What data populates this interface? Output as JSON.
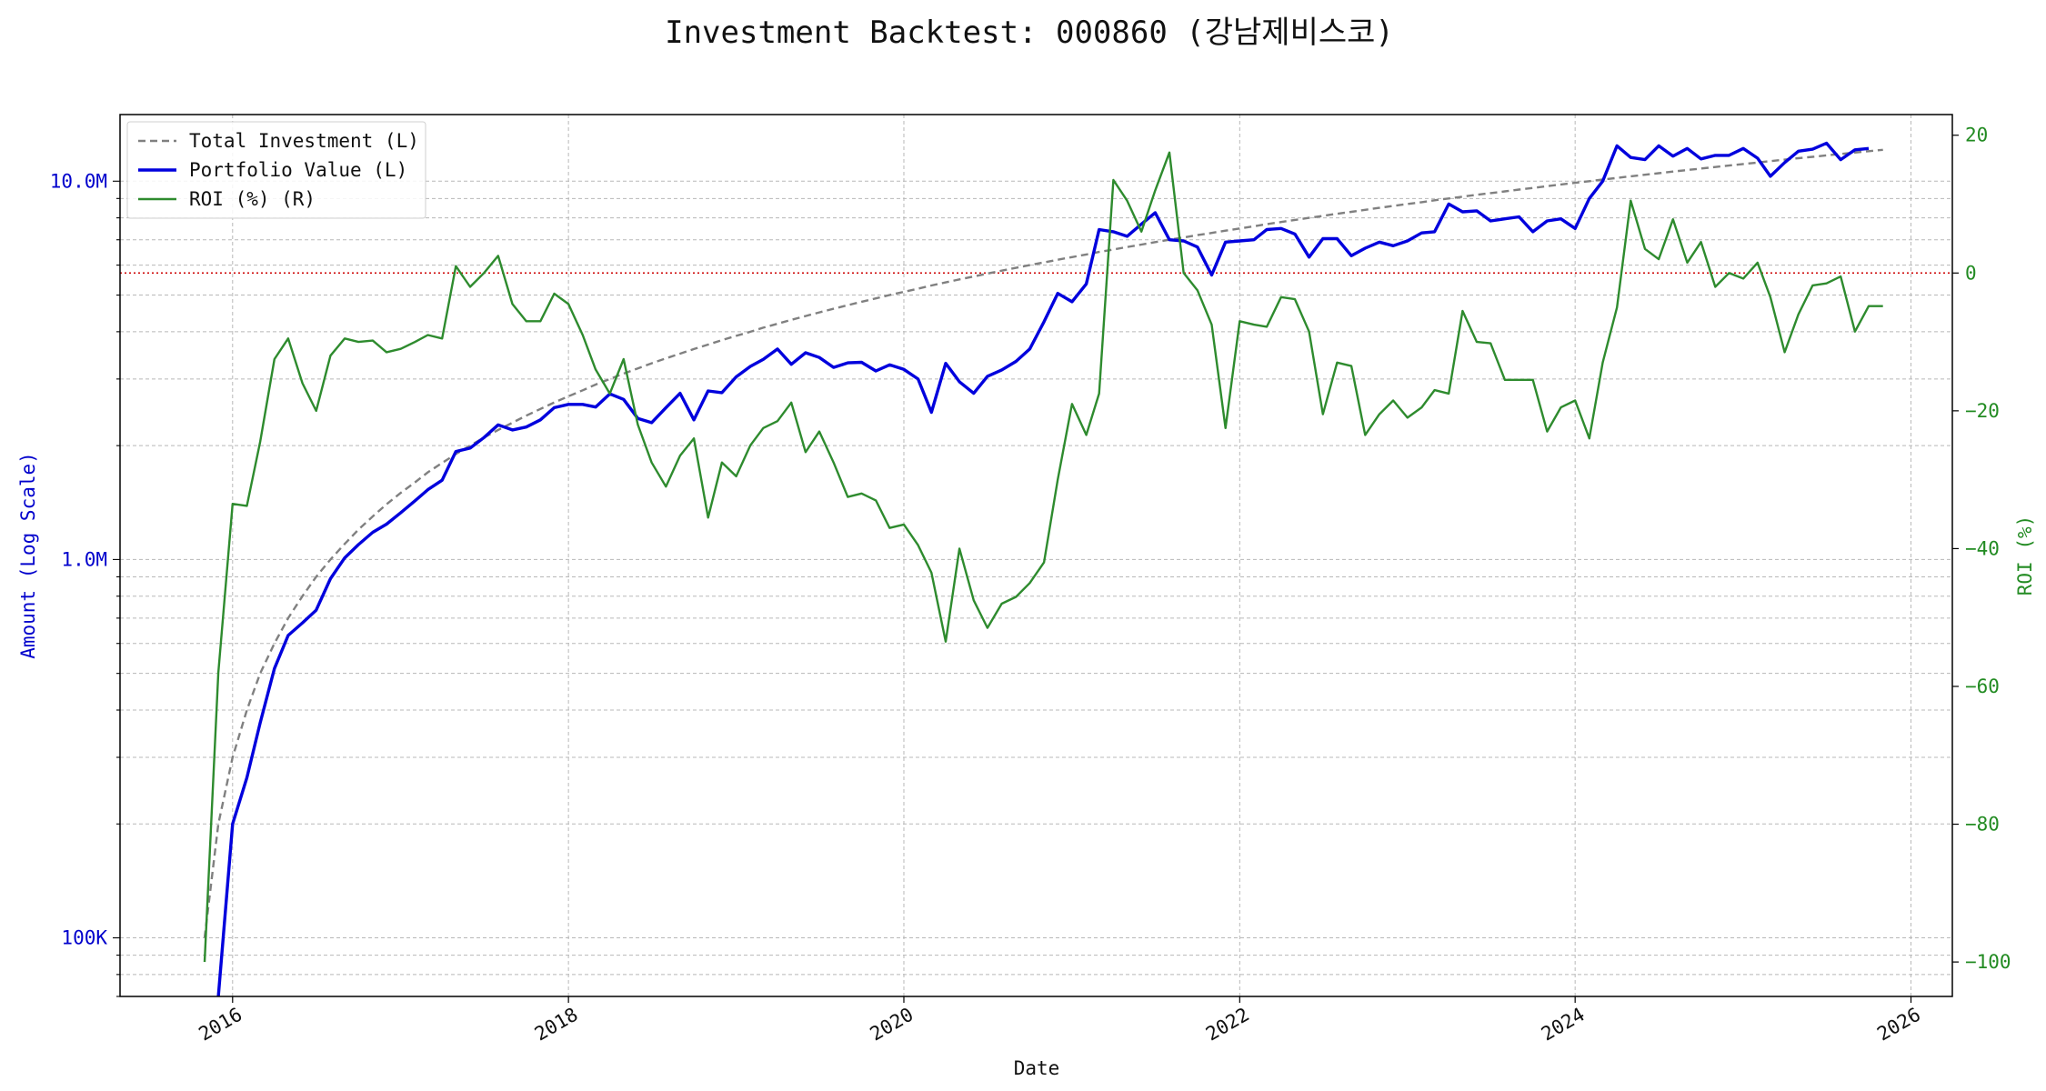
{
  "chart_data": {
    "type": "line",
    "title": "Investment Backtest: 000860 (강남제비스코)",
    "xlabel": "Date",
    "ylabel_left": "Amount (Log Scale)",
    "ylabel_right": "ROI (%)",
    "left_axis": {
      "scale": "log",
      "ylim": [
        70000,
        15000000
      ],
      "ticks": [
        {
          "value": 100000,
          "label": "100K"
        },
        {
          "value": 1000000,
          "label": "1.0M"
        },
        {
          "value": 10000000,
          "label": "10.0M"
        }
      ]
    },
    "right_axis": {
      "scale": "linear",
      "ylim": [
        -105,
        23
      ],
      "ticks": [
        {
          "value": 20,
          "label": "20"
        },
        {
          "value": 0,
          "label": "0"
        },
        {
          "value": -20,
          "label": "−20"
        },
        {
          "value": -40,
          "label": "−40"
        },
        {
          "value": -60,
          "label": "−60"
        },
        {
          "value": -80,
          "label": "−80"
        },
        {
          "value": -100,
          "label": "−100"
        }
      ],
      "reference_line": {
        "value": 0,
        "color": "#cc0000",
        "style": "dotted"
      }
    },
    "x_axis": {
      "xlim": [
        "2015-05-01",
        "2026-04-01"
      ],
      "ticks": [
        {
          "value": "2016-01-01",
          "label": "2016"
        },
        {
          "value": "2018-01-01",
          "label": "2018"
        },
        {
          "value": "2020-01-01",
          "label": "2020"
        },
        {
          "value": "2022-01-01",
          "label": "2022"
        },
        {
          "value": "2024-01-01",
          "label": "2024"
        },
        {
          "value": "2026-01-01",
          "label": "2026"
        }
      ]
    },
    "grid": true,
    "legend_position": "top-left",
    "start_date": "2015-11-01",
    "series": [
      {
        "name": "Total Investment (L)",
        "axis": "left",
        "color": "#808080",
        "style": "dashed",
        "values": [
          100000,
          200000,
          300000,
          400000,
          500000,
          600000,
          700000,
          800000,
          900000,
          1000000,
          1100000,
          1200000,
          1300000,
          1400000,
          1500000,
          1600000,
          1700000,
          1800000,
          1900000,
          2000000,
          2100000,
          2200000,
          2300000,
          2400000,
          2500000,
          2600000,
          2700000,
          2800000,
          2900000,
          3000000,
          3100000,
          3200000,
          3300000,
          3400000,
          3500000,
          3600000,
          3700000,
          3800000,
          3900000,
          4000000,
          4100000,
          4200000,
          4300000,
          4400000,
          4500000,
          4600000,
          4700000,
          4800000,
          4900000,
          5000000,
          5100000,
          5200000,
          5300000,
          5400000,
          5500000,
          5600000,
          5700000,
          5800000,
          5900000,
          6000000,
          6100000,
          6200000,
          6300000,
          6400000,
          6500000,
          6600000,
          6700000,
          6800000,
          6900000,
          7000000,
          7100000,
          7200000,
          7300000,
          7400000,
          7500000,
          7600000,
          7700000,
          7800000,
          7900000,
          8000000,
          8100000,
          8200000,
          8300000,
          8400000,
          8500000,
          8600000,
          8700000,
          8800000,
          8900000,
          9000000,
          9100000,
          9200000,
          9300000,
          9400000,
          9500000,
          9600000,
          9700000,
          9800000,
          9900000,
          10000000,
          10100000,
          10200000,
          10300000,
          10400000,
          10500000,
          10600000,
          10700000,
          10800000,
          10900000,
          11000000,
          11100000,
          11200000,
          11300000,
          11400000,
          11500000,
          11600000,
          11700000,
          11800000,
          11900000,
          12000000,
          12100000
        ]
      },
      {
        "name": "Portfolio Value (L)",
        "axis": "left",
        "color": "#0000dd",
        "style": "solid",
        "start_index": 1,
        "values": [
          70000,
          200000,
          265000,
          370000,
          515000,
          630000,
          680000,
          735000,
          890000,
          1010000,
          1095000,
          1180000,
          1240000,
          1330000,
          1430000,
          1530000,
          1620000,
          1930000,
          1970000,
          2100000,
          2270000,
          2200000,
          2240000,
          2340000,
          2520000,
          2570000,
          2570000,
          2530000,
          2740000,
          2650000,
          2360000,
          2300000,
          2520000,
          2750000,
          2340000,
          2790000,
          2760000,
          3040000,
          3240000,
          3380000,
          3600000,
          3280000,
          3520000,
          3420000,
          3220000,
          3310000,
          3320000,
          3150000,
          3270000,
          3180000,
          3000000,
          2450000,
          3300000,
          2950000,
          2750000,
          3050000,
          3170000,
          3340000,
          3600000,
          4250000,
          5050000,
          4800000,
          5350000,
          7450000,
          7350000,
          7150000,
          7700000,
          8250000,
          7000000,
          6950000,
          6700000,
          5650000,
          6900000,
          6950000,
          7000000,
          7450000,
          7500000,
          7250000,
          6300000,
          7050000,
          7050000,
          6350000,
          6650000,
          6900000,
          6750000,
          6950000,
          7300000,
          7350000,
          8700000,
          8300000,
          8350000,
          7850000,
          7950000,
          8050000,
          7350000,
          7850000,
          7950000,
          7500000,
          9000000,
          10000000,
          12400000,
          11550000,
          11400000,
          12400000,
          11650000,
          12200000,
          11450000,
          11700000,
          11700000,
          12200000,
          11500000,
          10300000,
          11200000,
          12000000,
          12150000,
          12600000,
          11400000,
          12100000,
          12200000
        ]
      },
      {
        "name": "ROI (%) (R)",
        "axis": "right",
        "color": "#2e8b2e",
        "style": "solid",
        "values": [
          -100,
          -58,
          -33.5,
          -33.8,
          -24.5,
          -12.5,
          -9.5,
          -16,
          -20,
          -12,
          -9.5,
          -10,
          -9.8,
          -11.5,
          -11,
          -10,
          -9,
          -9.5,
          1,
          -2,
          0,
          2.5,
          -4.5,
          -7,
          -7,
          -3,
          -4.5,
          -9,
          -14,
          -17.5,
          -12.5,
          -22,
          -27.5,
          -31,
          -26.5,
          -24,
          -35.5,
          -27.5,
          -29.5,
          -25,
          -22.5,
          -21.5,
          -18.8,
          -26,
          -23,
          -27.5,
          -32.5,
          -32,
          -33,
          -37,
          -36.5,
          -39.5,
          -43.5,
          -53.5,
          -40,
          -47.5,
          -51.5,
          -48,
          -47,
          -45,
          -42,
          -30,
          -19,
          -23.5,
          -17.5,
          13.5,
          10.5,
          6,
          12,
          17.5,
          0,
          -2.5,
          -7.5,
          -22.5,
          -7,
          -7.5,
          -7.8,
          -3.5,
          -3.8,
          -8.5,
          -20.5,
          -13,
          -13.5,
          -23.5,
          -20.5,
          -18.5,
          -21,
          -19.5,
          -17,
          -17.5,
          -5.5,
          -10,
          -10.2,
          -15.5,
          -15.5,
          -15.5,
          -23,
          -19.5,
          -18.5,
          -24,
          -13,
          -5,
          10.5,
          3.5,
          2,
          7.8,
          1.5,
          4.5,
          -2,
          0,
          -0.8,
          1.5,
          -3.5,
          -11.5,
          -6,
          -1.8,
          -1.5,
          -0.5,
          -8.5,
          -4.8,
          -4.8
        ]
      }
    ]
  }
}
